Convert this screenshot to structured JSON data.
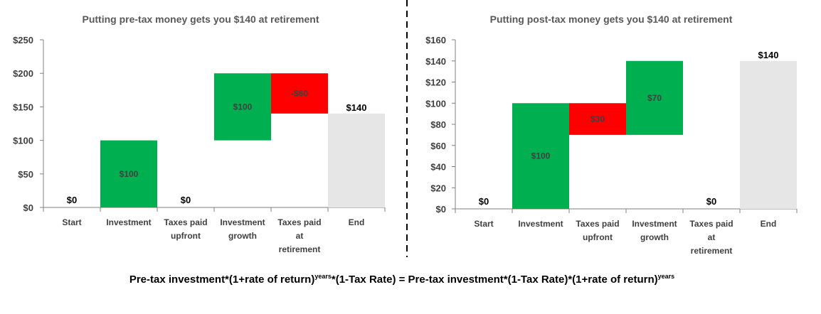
{
  "chart_data": [
    {
      "type": "waterfall",
      "title": "Putting pre-tax money gets you $140 at retirement",
      "yticks": [
        "$0",
        "$50",
        "$100",
        "$150",
        "$200",
        "$250"
      ],
      "ylim": [
        0,
        250
      ],
      "ystep": 50,
      "categories": [
        [
          "Start"
        ],
        [
          "Investment"
        ],
        [
          "Taxes paid",
          "upfront"
        ],
        [
          "Investment",
          "growth"
        ],
        [
          "Taxes paid",
          "at",
          "retirement"
        ],
        [
          "End"
        ]
      ],
      "bars": [
        {
          "base": 0,
          "top": 0,
          "kind": "none",
          "label": "$0"
        },
        {
          "base": 0,
          "top": 100,
          "kind": "increase",
          "label": "$100"
        },
        {
          "base": 0,
          "top": 0,
          "kind": "none",
          "label": "$0"
        },
        {
          "base": 100,
          "top": 200,
          "kind": "increase",
          "label": "$100"
        },
        {
          "base": 140,
          "top": 200,
          "kind": "decrease",
          "label": "-$60"
        },
        {
          "base": 0,
          "top": 140,
          "kind": "total",
          "label": "$140"
        }
      ]
    },
    {
      "type": "waterfall",
      "title": "Putting post-tax money gets you $140 at retirement",
      "yticks": [
        "$0",
        "$20",
        "$40",
        "$60",
        "$80",
        "$100",
        "$120",
        "$140",
        "$160"
      ],
      "ylim": [
        0,
        160
      ],
      "ystep": 20,
      "categories": [
        [
          "Start"
        ],
        [
          "Investment"
        ],
        [
          "Taxes paid",
          "upfront"
        ],
        [
          "Investment",
          "growth"
        ],
        [
          "Taxes paid",
          "at",
          "retirement"
        ],
        [
          "End"
        ]
      ],
      "bars": [
        {
          "base": 0,
          "top": 0,
          "kind": "none",
          "label": "$0"
        },
        {
          "base": 0,
          "top": 100,
          "kind": "increase",
          "label": "$100"
        },
        {
          "base": 70,
          "top": 100,
          "kind": "decrease",
          "label": "$30"
        },
        {
          "base": 70,
          "top": 140,
          "kind": "increase",
          "label": "$70"
        },
        {
          "base": 0,
          "top": 0,
          "kind": "none",
          "label": "$0"
        },
        {
          "base": 0,
          "top": 140,
          "kind": "total",
          "label": "$140"
        }
      ]
    }
  ],
  "colors": {
    "increase": "#00B050",
    "decrease": "#FF0000",
    "total": "#E7E6E6",
    "axis": "#808080",
    "divider": "#000000"
  },
  "formula": {
    "left": "Pre-tax investment*(1+rate of return)",
    "left_sup": "years",
    "middle": "*(1-Tax Rate)  = Pre-tax investment*(1-Tax Rate)*(1+rate of return)",
    "right_sup": "years"
  }
}
